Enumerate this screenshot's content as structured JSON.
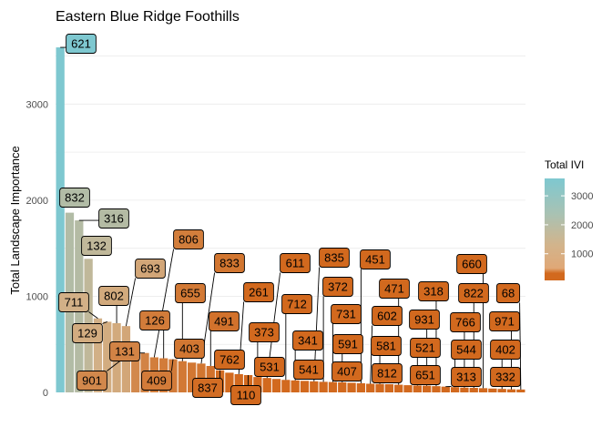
{
  "chart_data": {
    "type": "bar",
    "title": "Eastern Blue Ridge Foothills",
    "xlabel": "",
    "ylabel": "Total Landscape Importance",
    "ylim": [
      0,
      3600
    ],
    "yticks": [
      0,
      1000,
      2000,
      3000
    ],
    "grid": true,
    "legend": {
      "title": "Total IVI",
      "position": "right",
      "ticks": [
        1000,
        2000,
        3000
      ],
      "range": [
        80,
        3600
      ]
    },
    "colors": {
      "low": "#d2691e",
      "mid": "#d2b48c",
      "high": "#7ec8d0"
    },
    "categories": [
      "621",
      "832",
      "316",
      "132",
      "711",
      "129",
      "802",
      "693",
      "901",
      "131",
      "806",
      "126",
      "409",
      "655",
      "403",
      "833",
      "491",
      "837",
      "762",
      "261",
      "110",
      "373",
      "611",
      "531",
      "712",
      "341",
      "541",
      "835",
      "372",
      "731",
      "591",
      "407",
      "451",
      "602",
      "581",
      "812",
      "471",
      "651",
      "521",
      "931",
      "318",
      "313",
      "544",
      "766",
      "822",
      "660",
      "332",
      "402",
      "971",
      "68"
    ],
    "values": [
      3590,
      1870,
      1790,
      1390,
      770,
      735,
      720,
      690,
      450,
      410,
      365,
      355,
      345,
      325,
      310,
      300,
      275,
      230,
      205,
      190,
      180,
      160,
      150,
      140,
      130,
      125,
      120,
      115,
      110,
      108,
      105,
      100,
      95,
      90,
      88,
      85,
      80,
      75,
      72,
      70,
      65,
      60,
      55,
      50,
      47,
      44,
      40,
      36,
      32,
      30
    ]
  }
}
